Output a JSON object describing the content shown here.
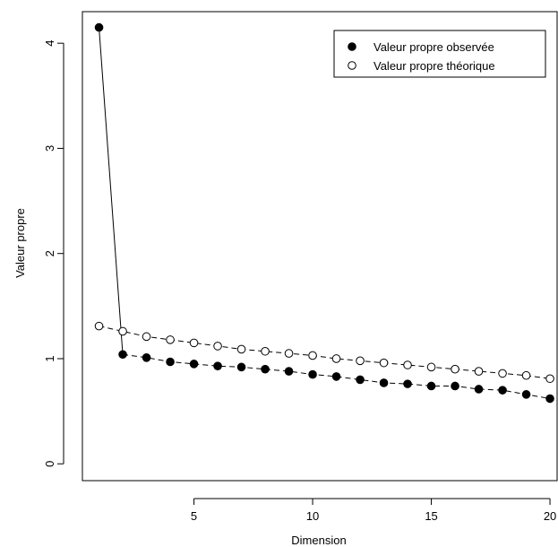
{
  "chart_data": {
    "type": "scatter",
    "title": "",
    "xlabel": "Dimension",
    "ylabel": "Valeur propre",
    "xlim": [
      0.3,
      20.3
    ],
    "ylim": [
      -0.16,
      4.3
    ],
    "x_ticks": [
      5,
      10,
      15,
      20
    ],
    "y_ticks": [
      0,
      1,
      2,
      3,
      4
    ],
    "grid": false,
    "legend_position": "top-right",
    "x": [
      1,
      2,
      3,
      4,
      5,
      6,
      7,
      8,
      9,
      10,
      11,
      12,
      13,
      14,
      15,
      16,
      17,
      18,
      19,
      20
    ],
    "series": [
      {
        "name": "Valeur propre observée",
        "marker": "filled-circle",
        "line": "mixed",
        "values": [
          4.15,
          1.04,
          1.01,
          0.97,
          0.95,
          0.93,
          0.92,
          0.9,
          0.88,
          0.85,
          0.83,
          0.8,
          0.77,
          0.76,
          0.74,
          0.74,
          0.71,
          0.7,
          0.66,
          0.62
        ]
      },
      {
        "name": "Valeur propre théorique",
        "marker": "open-circle",
        "line": "dashed",
        "values": [
          1.31,
          1.26,
          1.21,
          1.18,
          1.15,
          1.12,
          1.09,
          1.07,
          1.05,
          1.03,
          1.0,
          0.98,
          0.96,
          0.94,
          0.92,
          0.9,
          0.88,
          0.86,
          0.84,
          0.81
        ]
      }
    ]
  }
}
